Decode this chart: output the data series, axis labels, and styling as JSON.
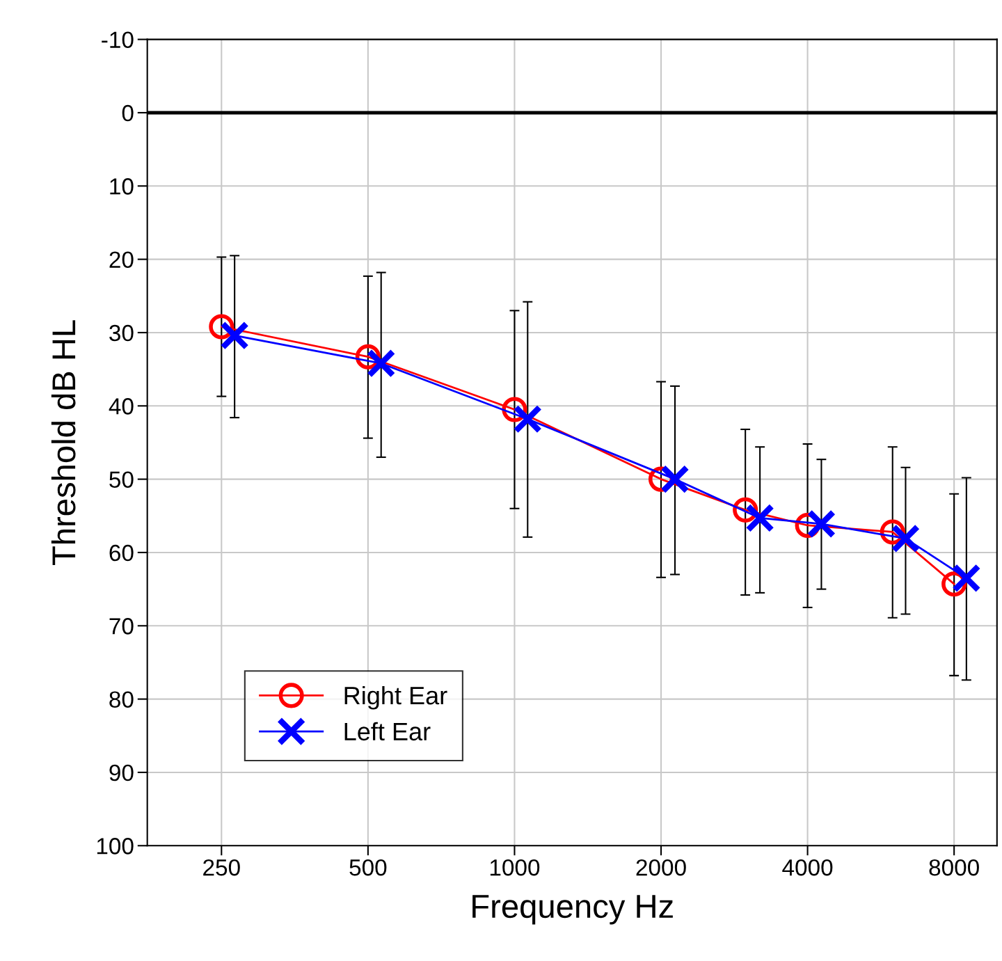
{
  "chart_data": {
    "type": "line",
    "xlabel": "Frequency Hz",
    "ylabel": "Threshold dB HL",
    "log": "x",
    "xlim": [
      176,
      9800
    ],
    "xticks": [
      250,
      500,
      1000,
      2000,
      4000,
      8000
    ],
    "ylim": [
      100,
      -10
    ],
    "yticks": [
      -10,
      0,
      10,
      20,
      30,
      40,
      50,
      60,
      70,
      80,
      90,
      100
    ],
    "grid": true,
    "legend": "bottom left",
    "ref_lines": [
      {
        "axis": "y",
        "value": 0,
        "color": "#000000"
      }
    ],
    "series": [
      {
        "name": "Right Ear",
        "color": "#ff0000",
        "marker": "circle",
        "x": [
          250,
          500,
          1000,
          2000,
          2980,
          4000,
          5980,
          8000
        ],
        "values": [
          29.2,
          33.3,
          40.5,
          50.0,
          54.2,
          56.3,
          57.2,
          64.3
        ],
        "errors": [
          [
            19.7,
            38.7
          ],
          [
            22.3,
            44.4
          ],
          [
            27.0,
            54.0
          ],
          [
            36.7,
            63.4
          ],
          [
            43.2,
            65.8
          ],
          [
            45.2,
            67.5
          ],
          [
            45.6,
            68.9
          ],
          [
            52.0,
            76.8
          ]
        ]
      },
      {
        "name": "Left Ear",
        "color": "#0000ff",
        "marker": "cross",
        "x": [
          266,
          532,
          1064,
          2136,
          3193,
          4270,
          6360,
          8480
        ],
        "values": [
          30.4,
          34.2,
          41.8,
          50.0,
          55.3,
          56.1,
          58.1,
          63.5
        ],
        "errors": [
          [
            19.5,
            41.6
          ],
          [
            21.8,
            47.0
          ],
          [
            25.8,
            57.9
          ],
          [
            37.3,
            63.0
          ],
          [
            45.6,
            65.5
          ],
          [
            47.3,
            65.0
          ],
          [
            48.4,
            68.4
          ],
          [
            49.8,
            77.4
          ]
        ]
      }
    ]
  }
}
